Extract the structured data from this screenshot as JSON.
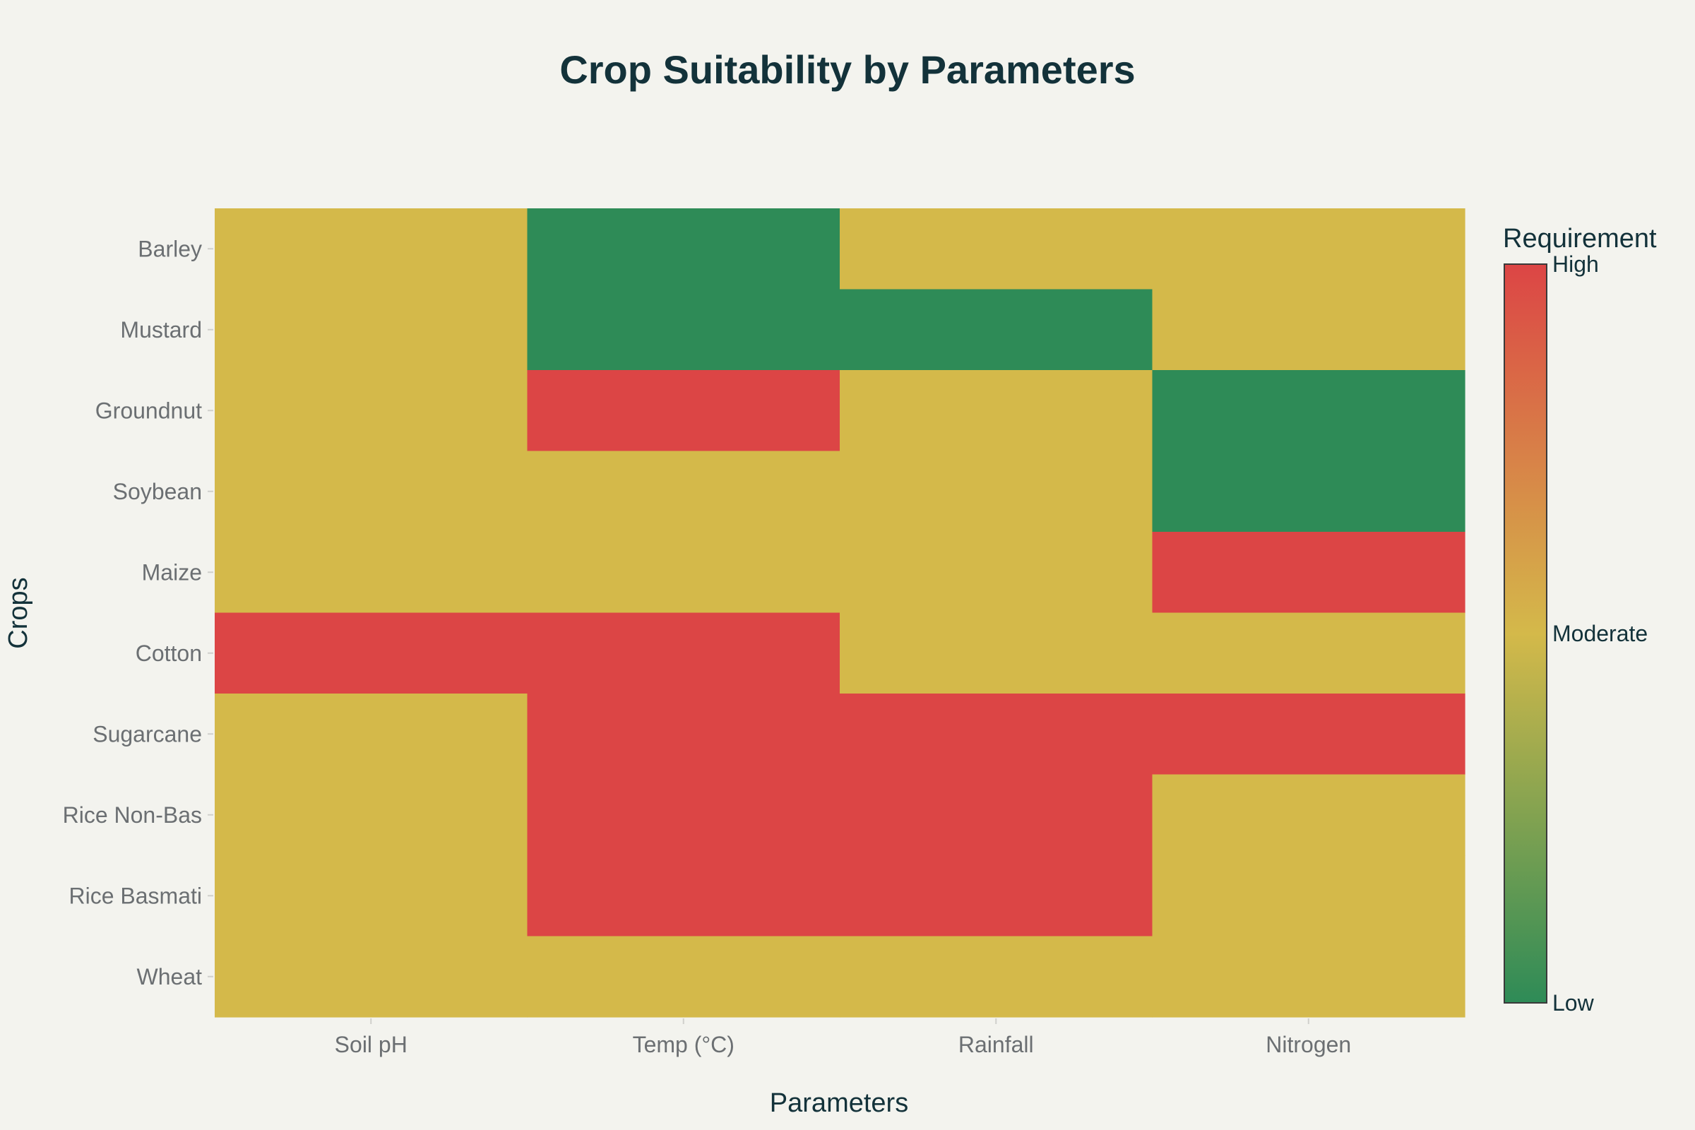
{
  "chart_data": {
    "type": "heatmap",
    "title": "Crop Suitability by Parameters",
    "xlabel": "Parameters",
    "ylabel": "Crops",
    "x_categories": [
      "Soil pH",
      "Temp (°C)",
      "Rainfall",
      "Nitrogen"
    ],
    "y_categories": [
      "Barley",
      "Mustard",
      "Groundnut",
      "Soybean",
      "Maize",
      "Cotton",
      "Sugarcane",
      "Rice Non-Bas",
      "Rice Basmati",
      "Wheat"
    ],
    "values": [
      [
        2,
        1,
        2,
        2
      ],
      [
        2,
        1,
        1,
        2
      ],
      [
        2,
        3,
        2,
        1
      ],
      [
        2,
        2,
        2,
        1
      ],
      [
        2,
        2,
        2,
        3
      ],
      [
        3,
        3,
        2,
        2
      ],
      [
        2,
        3,
        3,
        3
      ],
      [
        2,
        3,
        3,
        2
      ],
      [
        2,
        3,
        3,
        2
      ],
      [
        2,
        2,
        2,
        2
      ]
    ],
    "value_range": [
      1,
      3
    ],
    "colorbar": {
      "title": "Requirement",
      "ticks": [
        {
          "value": 3,
          "label": "High"
        },
        {
          "value": 2,
          "label": "Moderate"
        },
        {
          "value": 1,
          "label": "Low"
        }
      ],
      "colors": {
        "low": "#2e8b57",
        "mid": "#d4b94a",
        "high": "#dc4545"
      },
      "outline": "#3a3a3a"
    }
  }
}
